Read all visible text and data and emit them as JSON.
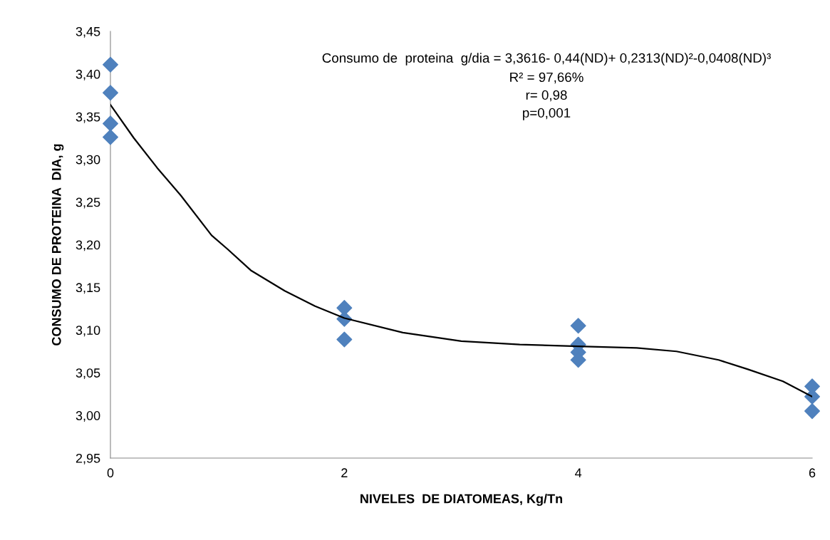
{
  "chart_data": {
    "type": "scatter",
    "xlabel": "NIVELES  DE DIATOMEAS, Kg/Tn",
    "ylabel": "CONSUMO DE PROTEINA  DIA, g",
    "annotations": [
      "Consumo de  proteina  g/dia = 3,3616- 0,44(ND)+ 0,2313(ND)²-0,0408(ND)³",
      "R² = 97,66%",
      "r= 0,98",
      "p=0,001"
    ],
    "xlim": [
      0,
      6
    ],
    "xticks": [
      0,
      2,
      4,
      6
    ],
    "ylim": [
      2.95,
      3.45
    ],
    "yticks": [
      {
        "value": 2.95,
        "label": "2,95"
      },
      {
        "value": 3.0,
        "label": "3,00"
      },
      {
        "value": 3.05,
        "label": "3,05"
      },
      {
        "value": 3.1,
        "label": "3,10"
      },
      {
        "value": 3.15,
        "label": "3,15"
      },
      {
        "value": 3.2,
        "label": "3,20"
      },
      {
        "value": 3.25,
        "label": "3,25"
      },
      {
        "value": 3.3,
        "label": "3,30"
      },
      {
        "value": 3.35,
        "label": "3,35"
      },
      {
        "value": 3.4,
        "label": "3,40"
      },
      {
        "value": 3.45,
        "label": "3,45"
      }
    ],
    "grid": false,
    "legend": false,
    "marker": "diamond",
    "series": [
      {
        "color": "#4f81bd",
        "x": [
          0,
          0,
          0,
          0,
          2,
          2,
          2,
          4,
          4,
          4,
          4,
          6,
          6,
          6
        ],
        "values": [
          3.411,
          3.378,
          3.342,
          3.326,
          3.126,
          3.113,
          3.089,
          3.105,
          3.083,
          3.074,
          3.065,
          3.034,
          3.022,
          3.005
        ]
      },
      {
        "type": "line",
        "color": "#000000",
        "marker": "none",
        "x": [
          0,
          0.2,
          0.4,
          0.6,
          0.865,
          1,
          1.2,
          1.49,
          1.75,
          2,
          2.5,
          3,
          3.5,
          4,
          4.5,
          4.84,
          5.2,
          5.45,
          5.75,
          6
        ],
        "values": [
          3.364,
          3.325,
          3.29,
          3.258,
          3.211,
          3.195,
          3.17,
          3.146,
          3.128,
          3.114,
          3.097,
          3.087,
          3.083,
          3.081,
          3.079,
          3.075,
          3.065,
          3.054,
          3.04,
          3.022
        ]
      }
    ]
  }
}
